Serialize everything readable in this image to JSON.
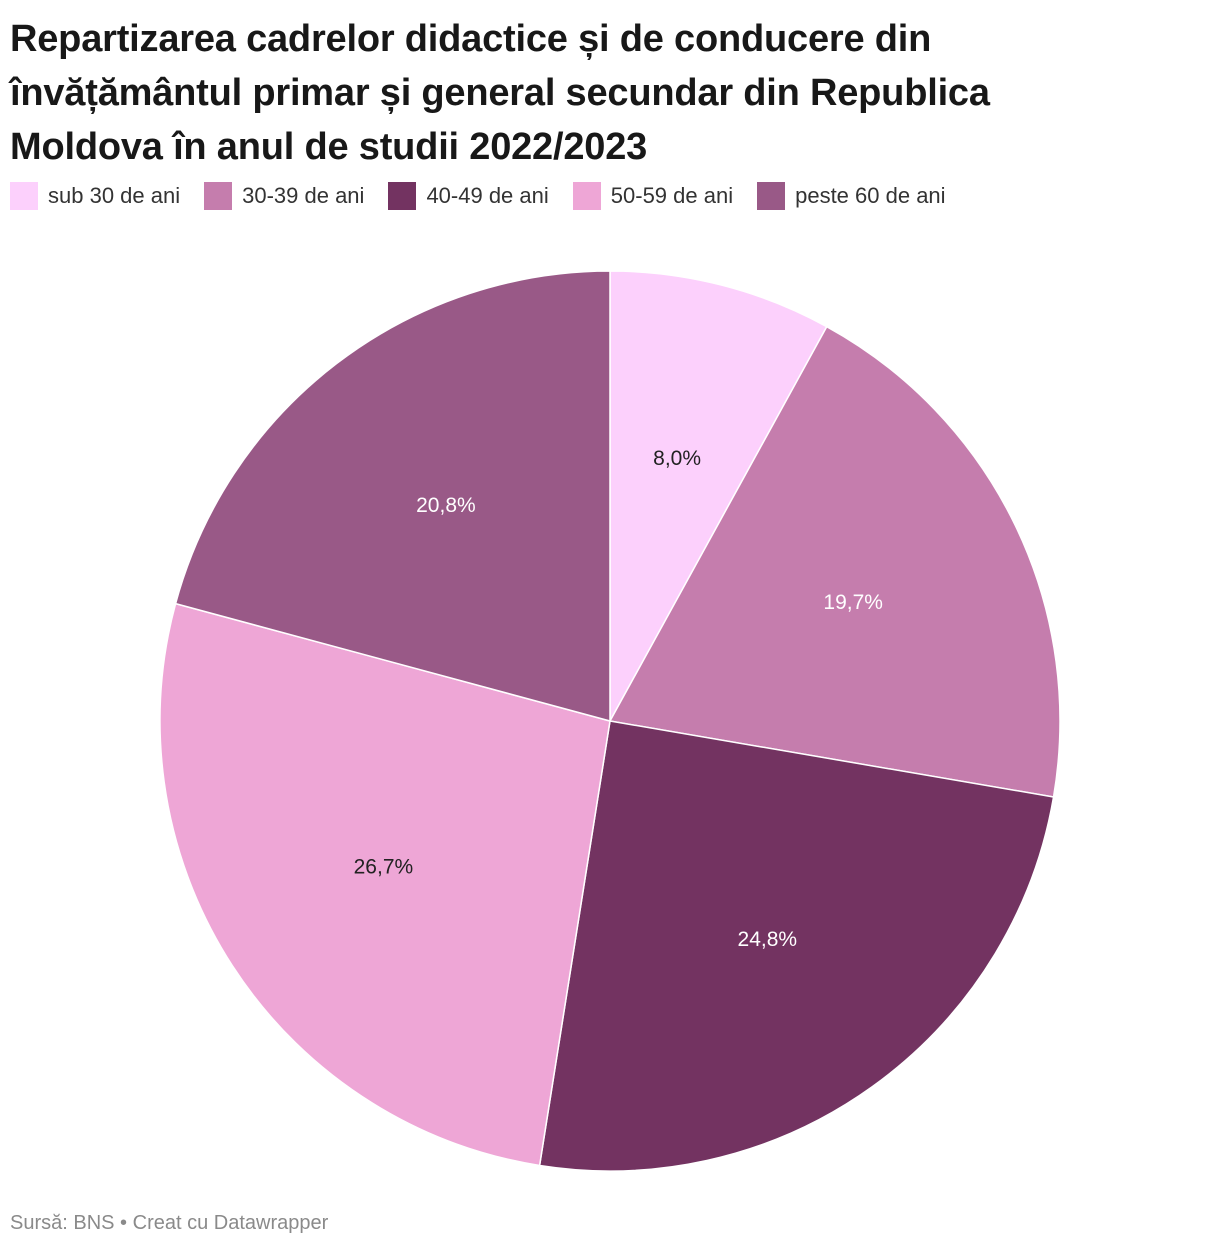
{
  "chart_data": {
    "type": "pie",
    "title": "Repartizarea cadrelor didactice și de conducere din învățământul primar și general secundar din Republica Moldova în anul de studii 2022/2023",
    "legend_position": "top",
    "slices": [
      {
        "label": "sub 30 de ani",
        "value": 8.0,
        "display": "8,0%",
        "color": "#fcd0fc",
        "label_color": "#222222"
      },
      {
        "label": "30-39 de ani",
        "value": 19.7,
        "display": "19,7%",
        "color": "#c57dad",
        "label_color": "#ffffff"
      },
      {
        "label": "40-49 de ani",
        "value": 24.8,
        "display": "24,8%",
        "color": "#733361",
        "label_color": "#ffffff"
      },
      {
        "label": "50-59 de ani",
        "value": 26.7,
        "display": "26,7%",
        "color": "#eea6d6",
        "label_color": "#222222"
      },
      {
        "label": "peste 60 de ani",
        "value": 20.8,
        "display": "20,8%",
        "color": "#995987",
        "label_color": "#ffffff"
      }
    ]
  },
  "footer": {
    "source_label": "Sursă: BNS",
    "separator": "•",
    "credit": "Creat cu Datawrapper"
  }
}
